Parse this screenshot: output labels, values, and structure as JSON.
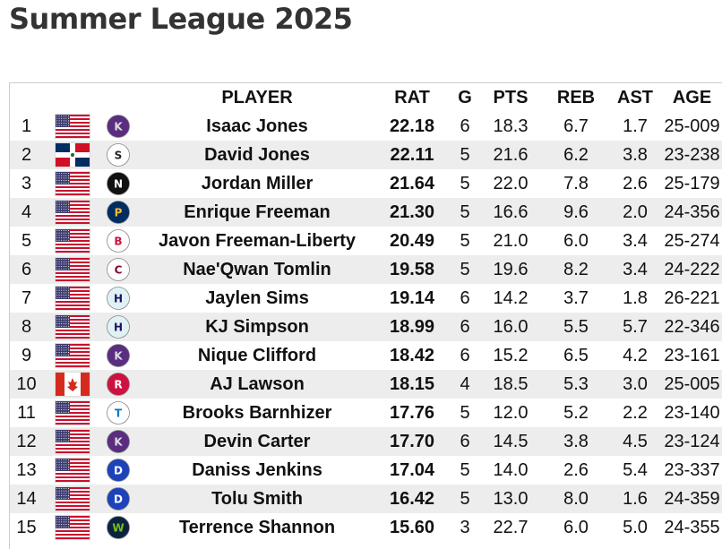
{
  "title": "Summer League 2025",
  "columns": {
    "rank": "",
    "flag": "",
    "team": "",
    "player": "PLAYER",
    "rat": "RAT",
    "g": "G",
    "pts": "PTS",
    "reb": "REB",
    "ast": "AST",
    "age": "AGE"
  },
  "colors": {
    "row_alt": "#ededed",
    "title": "#333333"
  },
  "rows": [
    {
      "rank": "1",
      "flag": "us-flag",
      "team": "kings-logo",
      "player": "Isaac Jones",
      "rat": "22.18",
      "g": "6",
      "pts": "18.3",
      "reb": "6.7",
      "ast": "1.7",
      "age": "25-009"
    },
    {
      "rank": "2",
      "flag": "dominican-flag",
      "team": "spurs-logo",
      "player": "David Jones",
      "rat": "22.11",
      "g": "5",
      "pts": "21.6",
      "reb": "6.2",
      "ast": "3.8",
      "age": "23-238"
    },
    {
      "rank": "3",
      "flag": "us-flag",
      "team": "nets-logo",
      "player": "Jordan Miller",
      "rat": "21.64",
      "g": "5",
      "pts": "22.0",
      "reb": "7.8",
      "ast": "2.6",
      "age": "25-179"
    },
    {
      "rank": "4",
      "flag": "us-flag",
      "team": "pacers-logo",
      "player": "Enrique Freeman",
      "rat": "21.30",
      "g": "5",
      "pts": "16.6",
      "reb": "9.6",
      "ast": "2.0",
      "age": "24-356"
    },
    {
      "rank": "5",
      "flag": "us-flag",
      "team": "bulls-logo",
      "player": "Javon Freeman-Liberty",
      "rat": "20.49",
      "g": "5",
      "pts": "21.0",
      "reb": "6.0",
      "ast": "3.4",
      "age": "25-274"
    },
    {
      "rank": "6",
      "flag": "us-flag",
      "team": "cavaliers-logo",
      "player": "Nae'Qwan Tomlin",
      "rat": "19.58",
      "g": "5",
      "pts": "19.6",
      "reb": "8.2",
      "ast": "3.4",
      "age": "24-222"
    },
    {
      "rank": "7",
      "flag": "us-flag",
      "team": "hornets-logo",
      "player": "Jaylen Sims",
      "rat": "19.14",
      "g": "6",
      "pts": "14.2",
      "reb": "3.7",
      "ast": "1.8",
      "age": "26-221"
    },
    {
      "rank": "8",
      "flag": "us-flag",
      "team": "hornets-logo",
      "player": "KJ Simpson",
      "rat": "18.99",
      "g": "6",
      "pts": "16.0",
      "reb": "5.5",
      "ast": "5.7",
      "age": "22-346"
    },
    {
      "rank": "9",
      "flag": "us-flag",
      "team": "kings-logo",
      "player": "Nique Clifford",
      "rat": "18.42",
      "g": "6",
      "pts": "15.2",
      "reb": "6.5",
      "ast": "4.2",
      "age": "23-161"
    },
    {
      "rank": "10",
      "flag": "canada-flag",
      "team": "raptors-logo",
      "player": "AJ Lawson",
      "rat": "18.15",
      "g": "4",
      "pts": "18.5",
      "reb": "5.3",
      "ast": "3.0",
      "age": "25-005"
    },
    {
      "rank": "11",
      "flag": "us-flag",
      "team": "thunder-logo",
      "player": "Brooks Barnhizer",
      "rat": "17.76",
      "g": "5",
      "pts": "12.0",
      "reb": "5.2",
      "ast": "2.2",
      "age": "23-140"
    },
    {
      "rank": "12",
      "flag": "us-flag",
      "team": "kings-logo",
      "player": "Devin Carter",
      "rat": "17.70",
      "g": "6",
      "pts": "14.5",
      "reb": "3.8",
      "ast": "4.5",
      "age": "23-124"
    },
    {
      "rank": "13",
      "flag": "us-flag",
      "team": "pistons-logo",
      "player": "Daniss Jenkins",
      "rat": "17.04",
      "g": "5",
      "pts": "14.0",
      "reb": "2.6",
      "ast": "5.4",
      "age": "23-337"
    },
    {
      "rank": "14",
      "flag": "us-flag",
      "team": "pistons-logo",
      "player": "Tolu Smith",
      "rat": "16.42",
      "g": "5",
      "pts": "13.0",
      "reb": "8.0",
      "ast": "1.6",
      "age": "24-359"
    },
    {
      "rank": "15",
      "flag": "us-flag",
      "team": "timberwolves-logo",
      "player": "Terrence Shannon",
      "rat": "15.60",
      "g": "3",
      "pts": "22.7",
      "reb": "6.0",
      "ast": "5.0",
      "age": "24-355"
    }
  ]
}
